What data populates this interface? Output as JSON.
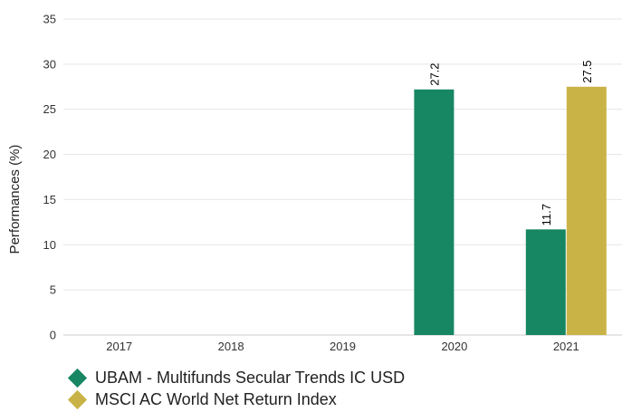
{
  "chart_data": {
    "type": "bar",
    "ylabel": "Performances (%)",
    "xlabel": "",
    "categories": [
      "2017",
      "2018",
      "2019",
      "2020",
      "2021"
    ],
    "ylim": [
      0,
      35
    ],
    "yticks": [
      0,
      5,
      10,
      15,
      20,
      25,
      30,
      35
    ],
    "grid": true,
    "legend_position": "bottom-left",
    "series": [
      {
        "name": "UBAM - Multifunds Secular Trends IC USD",
        "color": "#178663",
        "values": [
          null,
          null,
          null,
          27.2,
          11.7
        ]
      },
      {
        "name": "MSCI AC World Net Return Index",
        "color": "#c9b347",
        "values": [
          null,
          null,
          null,
          null,
          27.5
        ]
      }
    ]
  }
}
